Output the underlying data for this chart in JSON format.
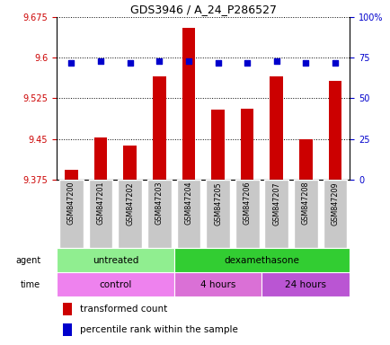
{
  "title": "GDS3946 / A_24_P286527",
  "samples": [
    "GSM847200",
    "GSM847201",
    "GSM847202",
    "GSM847203",
    "GSM847204",
    "GSM847205",
    "GSM847206",
    "GSM847207",
    "GSM847208",
    "GSM847209"
  ],
  "bar_values": [
    9.392,
    9.452,
    9.438,
    9.565,
    9.655,
    9.504,
    9.506,
    9.565,
    9.45,
    9.558
  ],
  "percentile_values": [
    72,
    73,
    72,
    73,
    73,
    72,
    72,
    73,
    72,
    72
  ],
  "ylim_left": [
    9.375,
    9.675
  ],
  "ylim_right": [
    0,
    100
  ],
  "yticks_left": [
    9.375,
    9.45,
    9.525,
    9.6,
    9.675
  ],
  "yticks_right": [
    0,
    25,
    50,
    75,
    100
  ],
  "ytick_labels_right": [
    "0",
    "25",
    "50",
    "75",
    "100%"
  ],
  "bar_color": "#cc0000",
  "dot_color": "#0000cc",
  "bar_baseline": 9.375,
  "agent_groups": [
    {
      "label": "untreated",
      "start": 0,
      "end": 4,
      "color": "#90ee90"
    },
    {
      "label": "dexamethasone",
      "start": 4,
      "end": 10,
      "color": "#32cd32"
    }
  ],
  "time_groups": [
    {
      "label": "control",
      "start": 0,
      "end": 4,
      "color": "#ee82ee"
    },
    {
      "label": "4 hours",
      "start": 4,
      "end": 7,
      "color": "#da70d6"
    },
    {
      "label": "24 hours",
      "start": 7,
      "end": 10,
      "color": "#ba55d3"
    }
  ],
  "legend_bar_label": "transformed count",
  "legend_dot_label": "percentile rank within the sample",
  "tick_label_color_left": "#cc0000",
  "tick_label_color_right": "#0000cc",
  "label_box_color": "#c8c8c8",
  "agent_label_color": "#808080",
  "time_label_color": "#808080"
}
